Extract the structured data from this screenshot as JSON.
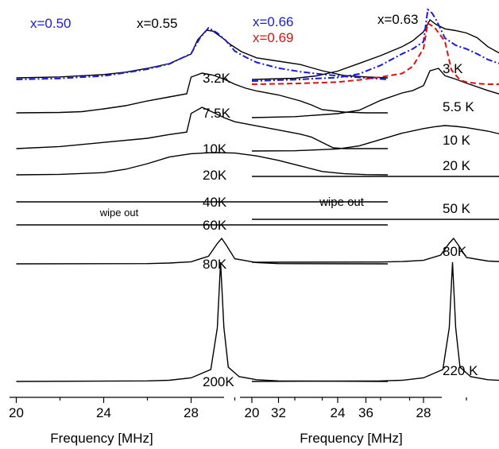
{
  "chart_data": [
    {
      "type": "line",
      "panel": "left",
      "xlabel": "Frequency [MHz]",
      "xlim": [
        20,
        38
      ],
      "xticks": [
        20,
        24,
        28,
        32,
        36
      ],
      "legend": [
        {
          "label": "x=0.50",
          "color": "#1a1adc",
          "style": "dash-dot"
        },
        {
          "label": "x=0.55",
          "color": "#000000",
          "style": "solid"
        }
      ],
      "annotations": [
        "wipe out"
      ],
      "series": [
        {
          "temperature": "3.2K",
          "x": [
            20,
            22,
            24,
            25,
            26,
            27,
            27.5,
            28,
            28.3,
            28.7,
            29,
            29.4,
            29.8,
            30.3,
            31,
            32,
            33,
            34,
            35,
            36,
            37
          ],
          "y": [
            0,
            0.02,
            0.07,
            0.12,
            0.2,
            0.3,
            0.4,
            0.5,
            0.8,
            1,
            0.98,
            0.85,
            0.7,
            0.55,
            0.42,
            0.35,
            0.28,
            0.15,
            0.05,
            0.02,
            0
          ]
        },
        {
          "temperature": "7.5K",
          "x": [
            20,
            22,
            23,
            24,
            25,
            26,
            27,
            27.8,
            28,
            28.5,
            29,
            29.5,
            30,
            30.5,
            31,
            32,
            33,
            33.5,
            34,
            35,
            36,
            37
          ],
          "y": [
            0,
            0.01,
            0.03,
            0.1,
            0.18,
            0.3,
            0.4,
            0.48,
            0.9,
            1,
            0.95,
            0.85,
            0.72,
            0.62,
            0.55,
            0.45,
            0.3,
            0.2,
            0.08,
            0.02,
            0,
            0
          ]
        },
        {
          "temperature": "10K",
          "x": [
            20,
            22,
            24,
            26,
            27,
            27.8,
            28,
            28.5,
            29,
            29.5,
            30,
            31,
            32,
            33,
            33.5,
            34,
            34.5,
            35,
            37
          ],
          "y": [
            0,
            0.05,
            0.15,
            0.25,
            0.34,
            0.4,
            0.85,
            1,
            0.88,
            0.75,
            0.65,
            0.55,
            0.45,
            0.35,
            0.28,
            0.15,
            0.02,
            0,
            0
          ]
        },
        {
          "temperature": "20K",
          "x": [
            20,
            22,
            24,
            25,
            26,
            27,
            28,
            29,
            30,
            31,
            32,
            33,
            34,
            35,
            36,
            37
          ],
          "y": [
            0,
            0.02,
            0.1,
            0.25,
            0.5,
            0.8,
            0.95,
            1,
            0.98,
            0.85,
            0.65,
            0.4,
            0.15,
            0.05,
            0.01,
            0
          ]
        },
        {
          "temperature": "40K",
          "x": [
            20,
            37
          ],
          "y": [
            0,
            0
          ]
        },
        {
          "temperature": "60K",
          "x": [
            20,
            37
          ],
          "y": [
            0,
            0
          ]
        },
        {
          "temperature": "80K",
          "x": [
            20,
            26,
            27,
            28,
            28.8,
            29.2,
            29.4,
            29.6,
            30,
            31,
            32,
            37
          ],
          "y": [
            0,
            0.01,
            0.03,
            0.08,
            0.3,
            0.8,
            1,
            0.75,
            0.2,
            0.05,
            0.01,
            0
          ]
        },
        {
          "temperature": "200K",
          "x": [
            20,
            26,
            27,
            28,
            28.9,
            29.2,
            29.35,
            29.5,
            29.7,
            30.2,
            31,
            32,
            37
          ],
          "y": [
            0,
            0.005,
            0.01,
            0.03,
            0.1,
            0.45,
            1,
            0.45,
            0.12,
            0.04,
            0.015,
            0.005,
            0
          ]
        }
      ],
      "overlay": {
        "label": "x=0.50",
        "x": [
          20,
          22,
          24,
          25,
          26,
          27,
          28,
          28.4,
          28.8,
          29.2,
          29.6,
          30,
          30.5,
          31,
          32,
          33,
          34,
          35,
          36,
          37
        ],
        "y": [
          0,
          0.02,
          0.07,
          0.13,
          0.2,
          0.3,
          0.5,
          0.8,
          1,
          0.9,
          0.75,
          0.55,
          0.43,
          0.33,
          0.22,
          0.15,
          0.1,
          0.06,
          0.03,
          0
        ]
      }
    },
    {
      "type": "line",
      "panel": "right",
      "xlabel": "Frequency [MHz]",
      "xlim": [
        20,
        38
      ],
      "xticks": [
        20,
        24,
        28,
        32,
        36
      ],
      "legend": [
        {
          "label": "x=0.66",
          "color": "#1a1adc",
          "style": "dash-dot"
        },
        {
          "label": "x=0.69",
          "color": "#e01010",
          "style": "dashed"
        },
        {
          "label": "x=0.63",
          "color": "#000000",
          "style": "solid"
        }
      ],
      "annotations": [
        "wipe out"
      ],
      "series": [
        {
          "temperature": "3 K",
          "x": [
            20,
            22,
            23,
            24,
            25,
            26,
            27,
            27.5,
            28,
            28.3,
            28.6,
            29,
            29.5,
            30,
            30.5,
            31,
            32,
            33,
            34,
            35,
            36,
            37
          ],
          "y": [
            0,
            0.02,
            0.06,
            0.14,
            0.27,
            0.4,
            0.55,
            0.65,
            0.8,
            1,
            0.92,
            0.85,
            0.82,
            0.78,
            0.7,
            0.55,
            0.35,
            0.18,
            0.06,
            0.02,
            0,
            0
          ]
        },
        {
          "temperature": "5.5 K",
          "x": [
            20,
            22,
            24,
            25,
            26,
            27,
            27.5,
            28,
            28.3,
            28.7,
            29,
            29.5,
            30,
            31,
            32,
            33,
            34,
            35,
            36,
            37
          ],
          "y": [
            0,
            0.02,
            0.08,
            0.15,
            0.35,
            0.5,
            0.55,
            0.65,
            0.95,
            1,
            0.85,
            0.78,
            0.7,
            0.55,
            0.42,
            0.3,
            0.2,
            0.1,
            0.03,
            0
          ]
        },
        {
          "temperature": "10 K",
          "x": [
            20,
            22,
            24,
            25,
            26,
            27,
            28,
            28.5,
            29,
            29.5,
            30,
            31,
            32,
            33,
            34,
            35,
            36,
            37
          ],
          "y": [
            0,
            0.01,
            0.08,
            0.2,
            0.45,
            0.7,
            0.88,
            0.95,
            1,
            0.97,
            0.92,
            0.78,
            0.58,
            0.38,
            0.18,
            0.07,
            0.02,
            0
          ]
        },
        {
          "temperature": "20 K",
          "x": [
            20,
            37
          ],
          "y": [
            0,
            0
          ]
        },
        {
          "temperature": "50 K",
          "x": [
            20,
            37
          ],
          "y": [
            0,
            0
          ]
        },
        {
          "temperature": "80K",
          "x": [
            20,
            26,
            27,
            28,
            28.8,
            29.2,
            29.4,
            29.6,
            30,
            31,
            32,
            37
          ],
          "y": [
            0,
            0.01,
            0.03,
            0.08,
            0.3,
            0.8,
            1,
            0.75,
            0.2,
            0.05,
            0.01,
            0
          ]
        },
        {
          "temperature": "220 K",
          "x": [
            20,
            26,
            27,
            28,
            28.9,
            29.2,
            29.35,
            29.5,
            29.7,
            30.2,
            31,
            32,
            37
          ],
          "y": [
            0,
            0.005,
            0.01,
            0.03,
            0.1,
            0.45,
            1,
            0.45,
            0.12,
            0.04,
            0.015,
            0.005,
            0
          ]
        }
      ],
      "overlays": [
        {
          "label": "x=0.66",
          "x": [
            20,
            22,
            24,
            25,
            26,
            27,
            27.5,
            28,
            28.2,
            28.4,
            28.6,
            29,
            29.5,
            30,
            30.5,
            31,
            32,
            33,
            34,
            35,
            36,
            37
          ],
          "y": [
            0,
            0.02,
            0.05,
            0.1,
            0.22,
            0.38,
            0.45,
            0.55,
            1,
            0.95,
            0.85,
            0.6,
            0.5,
            0.45,
            0.38,
            0.3,
            0.2,
            0.12,
            0.06,
            0.03,
            0.01,
            0
          ]
        },
        {
          "label": "x=0.69",
          "x": [
            20,
            22,
            24,
            25,
            26,
            27,
            27.5,
            28,
            28.2,
            28.5,
            29,
            29.3,
            29.7,
            30,
            30.5,
            31,
            32,
            33,
            34,
            37
          ],
          "y": [
            0,
            0.01,
            0.03,
            0.06,
            0.1,
            0.15,
            0.25,
            0.5,
            0.85,
            0.8,
            0.6,
            0.2,
            0.06,
            0.03,
            0.01,
            0,
            0,
            0,
            0,
            0
          ]
        }
      ]
    }
  ]
}
